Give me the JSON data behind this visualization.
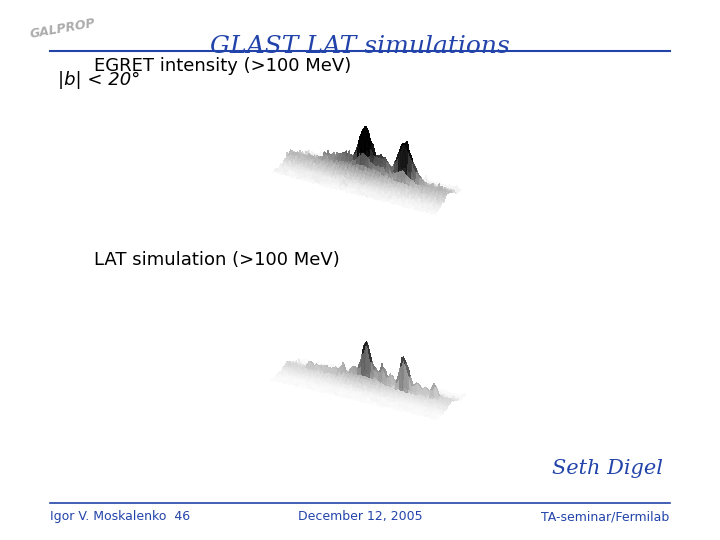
{
  "title": "GLAST LAT simulations",
  "title_color": "#2244aa",
  "title_fontsize": 18,
  "bg_color": "#ffffff",
  "label1": "EGRET intensity (>100 MeV)",
  "label2": "|b| < 20°",
  "label3": "LAT simulation (>100 MeV)",
  "label_fontsize": 13,
  "author": "Seth Digel",
  "author_fontsize": 15,
  "author_color": "#2244aa",
  "footer_left": "Igor V. Moskalenko  46",
  "footer_center": "December 12, 2005",
  "footer_right": "TA-seminar/Fermilab",
  "footer_fontsize": 9,
  "footer_color": "#2244aa",
  "line_color": "#2244aa"
}
